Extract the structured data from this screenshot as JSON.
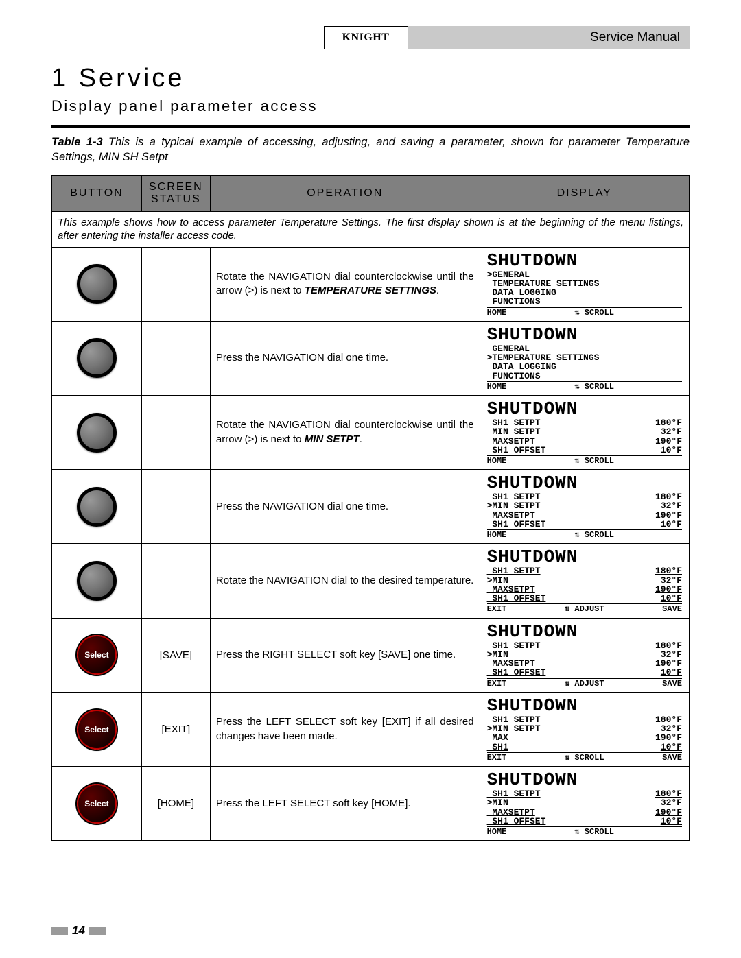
{
  "header": {
    "logo_text": "KNIGHT",
    "right_text": "Service Manual"
  },
  "section": {
    "num_title": "1   Service",
    "subtitle": "Display panel parameter access"
  },
  "caption": {
    "lead": "Table 1-3",
    "body": " This is a typical example of accessing, adjusting, and saving a parameter, shown for parameter Temperature Settings, MIN SH Setpt"
  },
  "columns": {
    "button": "BUTTON",
    "screen": "SCREEN STATUS",
    "operation": "OPERATION",
    "display": "DISPLAY"
  },
  "intro_row": "This example shows how to access parameter Temperature Settings.  The first display shown is at the beginning of the menu listings, after entering the installer access code.",
  "softkey_label": "Select",
  "rows": [
    {
      "button_type": "dial",
      "screen": "",
      "op_pre": "Rotate the NAVIGATION dial counterclockwise until the arrow (>) is next to ",
      "op_bold": "TEMPERATURE SETTINGS",
      "op_post": ".",
      "lcd": {
        "title": "SHUTDOWN",
        "lines": [
          {
            "l": ">GENERAL",
            "r": ""
          },
          {
            "l": " TEMPERATURE SETTINGS",
            "r": ""
          },
          {
            "l": " DATA LOGGING",
            "r": ""
          },
          {
            "l": " FUNCTIONS",
            "r": ""
          }
        ],
        "footer": {
          "l": "HOME",
          "m": "⇅ SCROLL",
          "r": ""
        }
      }
    },
    {
      "button_type": "dial",
      "screen": "",
      "op_pre": "Press the NAVIGATION dial one time.",
      "op_bold": "",
      "op_post": "",
      "lcd": {
        "title": "SHUTDOWN",
        "lines": [
          {
            "l": " GENERAL",
            "r": ""
          },
          {
            "l": ">TEMPERATURE SETTINGS",
            "r": ""
          },
          {
            "l": " DATA LOGGING",
            "r": ""
          },
          {
            "l": " FUNCTIONS",
            "r": ""
          }
        ],
        "footer": {
          "l": "HOME",
          "m": "⇅ SCROLL",
          "r": ""
        }
      }
    },
    {
      "button_type": "dial",
      "screen": "",
      "op_pre": "Rotate the NAVIGATION dial counterclockwise until the arrow (>) is next to ",
      "op_bold": "MIN SETPT",
      "op_post": ".",
      "lcd": {
        "title": "SHUTDOWN",
        "lines": [
          {
            "l": " SH1 SETPT",
            "r": "180°F"
          },
          {
            "l": " MIN SETPT",
            "r": "32°F"
          },
          {
            "l": " MAXSETPT",
            "r": "190°F"
          },
          {
            "l": " SH1 OFFSET",
            "r": "10°F"
          }
        ],
        "footer": {
          "l": "HOME",
          "m": "⇅ SCROLL",
          "r": ""
        }
      }
    },
    {
      "button_type": "dial",
      "screen": "",
      "op_pre": "Press the NAVIGATION dial one time.",
      "op_bold": "",
      "op_post": "",
      "lcd": {
        "title": "SHUTDOWN",
        "lines": [
          {
            "l": " SH1 SETPT",
            "r": "180°F"
          },
          {
            "l": ">MIN SETPT",
            "r": "32°F"
          },
          {
            "l": " MAXSETPT",
            "r": "190°F"
          },
          {
            "l": " SH1 OFFSET",
            "r": "10°F"
          }
        ],
        "footer": {
          "l": "HOME",
          "m": "⇅ SCROLL",
          "r": ""
        }
      }
    },
    {
      "button_type": "dial",
      "screen": "",
      "op_pre": "Rotate the NAVIGATION dial to the desired temperature.",
      "op_bold": "",
      "op_post": "",
      "lcd": {
        "title": "SHUTDOWN",
        "lines": [
          {
            "l": " SH1 SETPT",
            "r": "180°F",
            "ul": true
          },
          {
            "l": ">MIN",
            "r": "32°F",
            "ul": true
          },
          {
            "l": " MAXSETPT",
            "r": "190°F",
            "ul": true
          },
          {
            "l": " SH1 OFFSET",
            "r": "10°F",
            "ul": true
          }
        ],
        "footer": {
          "l": "EXIT",
          "m": "⇅ ADJUST",
          "r": "SAVE"
        }
      }
    },
    {
      "button_type": "softkey",
      "screen": "[SAVE]",
      "op_pre": "Press the RIGHT SELECT soft key [SAVE] one time.",
      "op_bold": "",
      "op_post": "",
      "lcd": {
        "title": "SHUTDOWN",
        "lines": [
          {
            "l": " SH1 SETPT",
            "r": "180°F",
            "ul": true
          },
          {
            "l": ">MIN",
            "r": "32°F",
            "ul": true
          },
          {
            "l": " MAXSETPT",
            "r": "190°F",
            "ul": true
          },
          {
            "l": " SH1 OFFSET",
            "r": "10°F",
            "ul": true
          }
        ],
        "footer": {
          "l": "EXIT",
          "m": "⇅ ADJUST",
          "r": "SAVE"
        }
      }
    },
    {
      "button_type": "softkey",
      "screen": "[EXIT]",
      "op_pre": "Press the LEFT SELECT soft key [EXIT] if all desired changes have been made.",
      "op_bold": "",
      "op_post": "",
      "lcd": {
        "title": "SHUTDOWN",
        "lines": [
          {
            "l": " SH1 SETPT",
            "r": "180°F",
            "ul": true
          },
          {
            "l": ">MIN SETPT",
            "r": "32°F",
            "ul": true
          },
          {
            "l": " MAX",
            "r": "190°F",
            "ul": true
          },
          {
            "l": " SH1",
            "r": "10°F",
            "ul": true
          }
        ],
        "footer": {
          "l": "EXIT",
          "m": "⇅ SCROLL",
          "r": "SAVE"
        }
      }
    },
    {
      "button_type": "softkey",
      "screen": "[HOME]",
      "op_pre": "Press the LEFT SELECT soft key [HOME].",
      "op_bold": "",
      "op_post": "",
      "lcd": {
        "title": "SHUTDOWN",
        "lines": [
          {
            "l": " SH1 SETPT",
            "r": "180°F",
            "ul": true
          },
          {
            "l": ">MIN",
            "r": "32°F",
            "ul": true
          },
          {
            "l": " MAXSETPT",
            "r": "190°F",
            "ul": true
          },
          {
            "l": " SH1 OFFSET",
            "r": "10°F",
            "ul": true
          }
        ],
        "footer": {
          "l": "HOME",
          "m": "⇅ SCROLL",
          "r": ""
        }
      }
    }
  ],
  "page_number": "14"
}
